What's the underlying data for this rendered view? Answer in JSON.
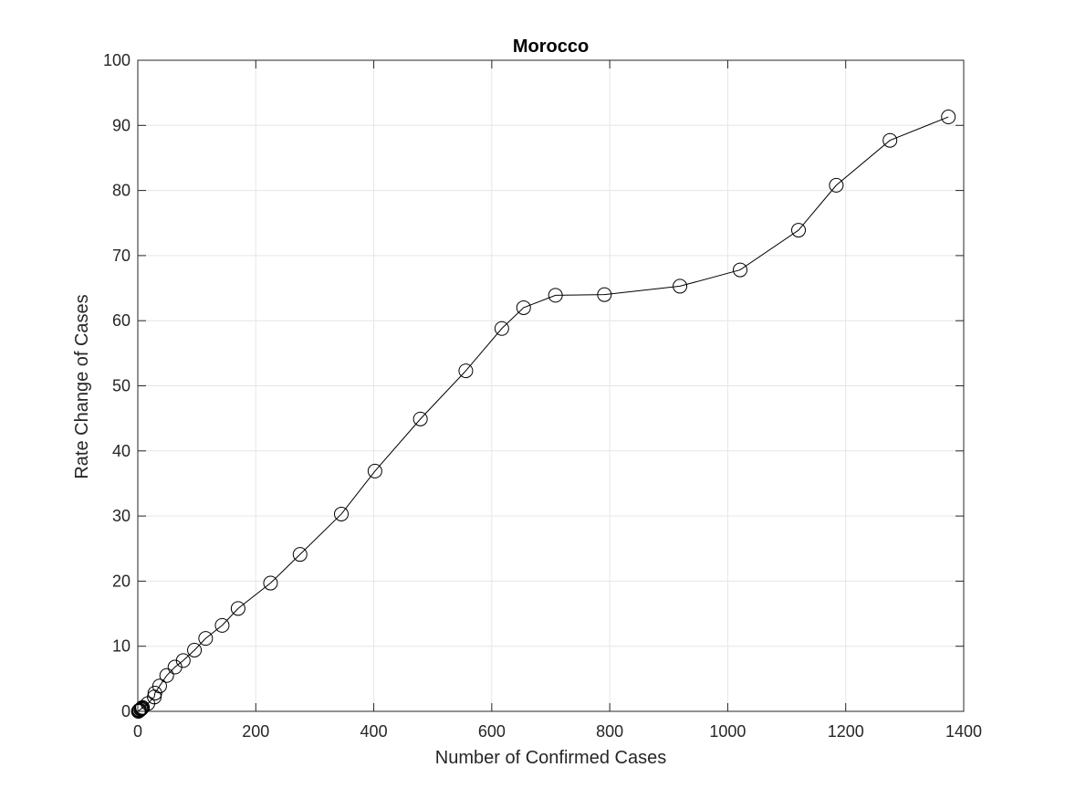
{
  "chart_data": {
    "type": "line",
    "title": "Morocco",
    "xlabel": "Number of Confirmed Cases",
    "ylabel": "Rate Change of Cases",
    "xlim": [
      0,
      1400
    ],
    "ylim": [
      0,
      100
    ],
    "xticks": [
      "0",
      "200",
      "400",
      "600",
      "800",
      "1000",
      "1200",
      "1400"
    ],
    "yticks": [
      "0",
      "10",
      "20",
      "30",
      "40",
      "50",
      "60",
      "70",
      "80",
      "90",
      "100"
    ],
    "grid": true,
    "legend": "none",
    "marker": "open-circle",
    "colors": {
      "line": "#000000",
      "grid": "#e6e6e6",
      "axis": "#262626"
    },
    "series": [
      {
        "x": [
          1,
          2,
          3,
          5,
          6,
          7,
          8,
          17,
          28,
          29,
          37,
          49,
          63,
          77,
          96,
          115,
          143,
          170,
          225,
          275,
          345,
          402,
          479,
          556,
          617,
          654,
          708,
          791,
          919,
          1021,
          1120,
          1184,
          1275,
          1374
        ],
        "y": [
          0.0,
          0.1,
          0.2,
          0.3,
          0.4,
          0.5,
          0.6,
          1.2,
          2.2,
          2.8,
          3.9,
          5.5,
          6.8,
          7.8,
          9.4,
          11.2,
          13.2,
          15.8,
          19.7,
          24.1,
          30.3,
          36.9,
          44.9,
          52.3,
          58.8,
          62.0,
          63.9,
          64.0,
          65.3,
          67.8,
          73.9,
          80.8,
          87.7,
          91.3
        ]
      }
    ]
  }
}
